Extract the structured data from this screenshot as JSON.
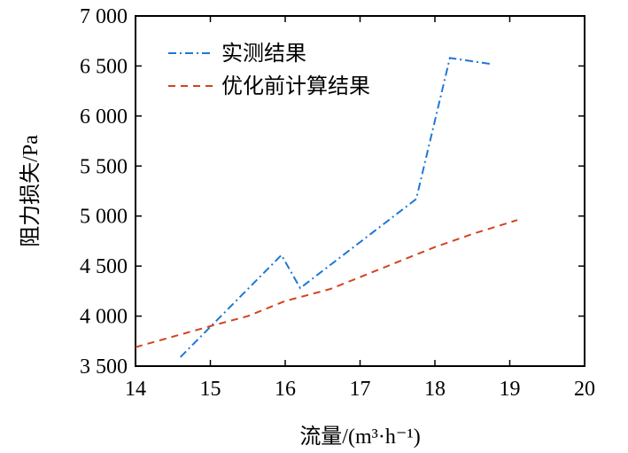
{
  "chart_data": {
    "type": "line",
    "title": "",
    "xlabel": "流量/(m³·h⁻¹)",
    "ylabel": "阻力损失/Pa",
    "xlim": [
      14,
      20
    ],
    "ylim": [
      3500,
      7000
    ],
    "x_ticks": [
      14,
      15,
      16,
      17,
      18,
      19,
      20
    ],
    "x_tick_labels": [
      "14",
      "15",
      "16",
      "17",
      "18",
      "19",
      "20"
    ],
    "y_ticks": [
      3500,
      4000,
      4500,
      5000,
      5500,
      6000,
      6500,
      7000
    ],
    "y_tick_labels": [
      "3 500",
      "4 000",
      "4 500",
      "5 000",
      "5 500",
      "6 000",
      "6 500",
      "7 000"
    ],
    "grid": false,
    "legend_position": "top-left",
    "series": [
      {
        "name": "实测结果",
        "color": "#1f77d4",
        "style": "dash-dot",
        "points": [
          [
            14.6,
            3590
          ],
          [
            15.95,
            4610
          ],
          [
            16.2,
            4280
          ],
          [
            17.75,
            5170
          ],
          [
            18.2,
            6580
          ],
          [
            18.75,
            6520
          ]
        ]
      },
      {
        "name": "优化前计算结果",
        "color": "#d2431f",
        "style": "dashed",
        "points": [
          [
            14.0,
            3690
          ],
          [
            15.0,
            3900
          ],
          [
            15.5,
            4000
          ],
          [
            16.0,
            4150
          ],
          [
            16.6,
            4270
          ],
          [
            17.0,
            4390
          ],
          [
            17.5,
            4540
          ],
          [
            18.0,
            4690
          ],
          [
            18.5,
            4820
          ],
          [
            19.1,
            4960
          ]
        ]
      }
    ]
  }
}
